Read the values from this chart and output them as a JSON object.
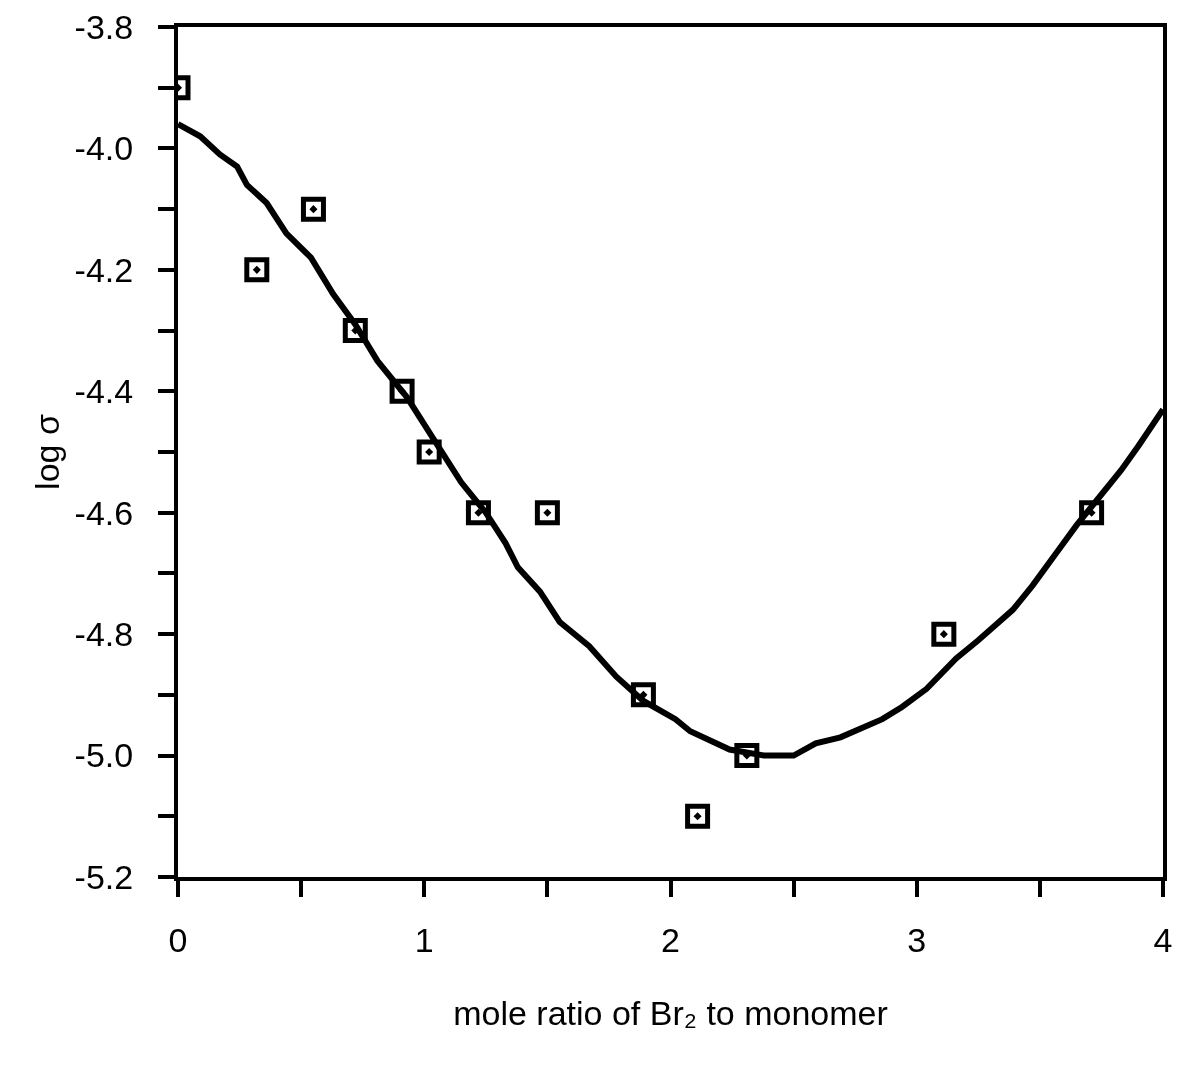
{
  "chart_data": {
    "type": "scatter",
    "xlabel": "mole ratio of Br₂ to monomer",
    "ylabel": "log σ",
    "xlim": [
      0,
      4
    ],
    "ylim": [
      -5.2,
      -3.8
    ],
    "xticks": [
      0,
      {
        "value": 0.5,
        "label": null
      },
      1,
      {
        "value": 1.5,
        "label": null
      },
      2,
      {
        "value": 2.5,
        "label": null
      },
      3,
      {
        "value": 3.5,
        "label": null
      },
      4
    ],
    "yticks": [
      -5.2,
      {
        "value": -5.1,
        "label": null
      },
      {
        "value": -5,
        "label": "-5.0"
      },
      {
        "value": -4.9,
        "label": null
      },
      -4.8,
      {
        "value": -4.7,
        "label": null
      },
      -4.6,
      {
        "value": -4.5,
        "label": null
      },
      -4.4,
      {
        "value": -4.3,
        "label": null
      },
      -4.2,
      {
        "value": -4.1,
        "label": null
      },
      {
        "value": -4,
        "label": "-4.0"
      },
      {
        "value": -3.9,
        "label": null
      },
      -3.8
    ],
    "line_style": "solid",
    "series": [
      {
        "type": "line",
        "marker": "none",
        "color": "#000000",
        "x": [
          0,
          0.09,
          0.17,
          0.24,
          0.28,
          0.36,
          0.44,
          0.54,
          0.63,
          0.72,
          0.81,
          0.93,
          1.04,
          1.15,
          1.25,
          1.33,
          1.38,
          1.47,
          1.55,
          1.67,
          1.78,
          1.89,
          2.02,
          2.08,
          2.24,
          2.38,
          2.5,
          2.59,
          2.69,
          2.86,
          2.94,
          3.04,
          3.16,
          3.25,
          3.39,
          3.47,
          3.56,
          3.65,
          3.75,
          3.83,
          3.9,
          4
        ],
        "values": [
          -3.96,
          -3.98,
          -4.01,
          -4.03,
          -4.06,
          -4.09,
          -4.14,
          -4.18,
          -4.24,
          -4.29,
          -4.35,
          -4.41,
          -4.48,
          -4.55,
          -4.6,
          -4.65,
          -4.69,
          -4.73,
          -4.78,
          -4.82,
          -4.87,
          -4.91,
          -4.94,
          -4.96,
          -4.99,
          -5,
          -5,
          -4.98,
          -4.97,
          -4.94,
          -4.92,
          -4.89,
          -4.84,
          -4.81,
          -4.76,
          -4.72,
          -4.67,
          -4.62,
          -4.57,
          -4.53,
          -4.49,
          -4.43
        ]
      },
      {
        "marker": "square",
        "color": "#000000",
        "x": [
          0,
          0.32,
          0.55,
          0.72,
          0.91,
          1.02,
          1.22,
          1.5,
          1.89,
          2.11,
          2.31,
          3.11,
          3.71
        ],
        "values": [
          -3.9,
          -4.2,
          -4.1,
          -4.3,
          -4.4,
          -4.5,
          -4.6,
          -4.6,
          -4.9,
          -5.1,
          -5,
          -4.8,
          -4.6
        ]
      }
    ]
  }
}
